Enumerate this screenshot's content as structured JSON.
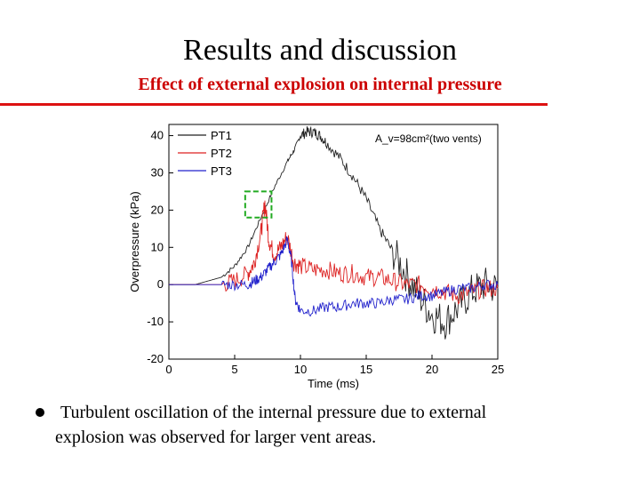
{
  "slide": {
    "title": "Results and discussion",
    "subtitle": "Effect of external explosion on internal pressure",
    "bullet_line1": "Turbulent oscillation of the internal pressure due to external",
    "bullet_line2": "explosion was observed  for larger vent areas."
  },
  "chart_data": {
    "type": "line",
    "title": "",
    "xlabel": "Time (ms)",
    "ylabel": "Overpressure (kPa)",
    "xlim": [
      0,
      25
    ],
    "ylim": [
      -20,
      43
    ],
    "xticks": [
      0,
      5,
      10,
      15,
      20,
      25
    ],
    "yticks": [
      -20,
      -10,
      0,
      10,
      20,
      30,
      40
    ],
    "annotation": "A_v=98cm²(two vents)",
    "legend_position": "top-left",
    "highlight_box": {
      "x_range": [
        5.8,
        7.8
      ],
      "y_range": [
        18,
        25
      ],
      "color": "#22aa22"
    },
    "series": [
      {
        "name": "PT1",
        "color": "#222222",
        "x": [
          0,
          2,
          3,
          4,
          5,
          6,
          7,
          8,
          9,
          9.5,
          10,
          10.5,
          11,
          11.5,
          12,
          13,
          14,
          15,
          16,
          17,
          18,
          19,
          20,
          21,
          22,
          23,
          24,
          25
        ],
        "y": [
          0,
          0,
          1,
          2,
          5,
          10,
          18,
          26,
          33,
          36,
          40,
          41,
          41,
          40,
          38,
          34,
          29,
          23,
          15,
          9,
          3,
          -3,
          -8,
          -10,
          -6,
          -2,
          0,
          -1
        ]
      },
      {
        "name": "PT2",
        "color": "#dd2222",
        "x": [
          0,
          2,
          4,
          5,
          6,
          6.5,
          7,
          7.3,
          7.6,
          8,
          8.5,
          9,
          9.5,
          10,
          11,
          12,
          13,
          14,
          15,
          16,
          17,
          18,
          19,
          20,
          21,
          22,
          23,
          24,
          25
        ],
        "y": [
          0,
          0,
          0,
          1,
          3,
          6,
          14,
          22,
          12,
          8,
          10,
          13,
          6,
          5,
          4,
          4,
          3,
          3,
          2,
          2,
          1,
          0,
          0,
          -1,
          -2,
          -3,
          -2,
          -1,
          -1
        ],
        "noise": 2.5
      },
      {
        "name": "PT3",
        "color": "#2222cc",
        "x": [
          0,
          3,
          4,
          5,
          6,
          6.5,
          7,
          7.5,
          8,
          8.5,
          9,
          9.3,
          9.6,
          10,
          11,
          12,
          13,
          14,
          15,
          16,
          17,
          18,
          19,
          20,
          21,
          22,
          23,
          24,
          25
        ],
        "y": [
          0,
          0,
          0,
          0,
          0,
          1,
          2,
          4,
          6,
          8,
          12,
          7,
          -4,
          -7,
          -7,
          -6,
          -6,
          -5,
          -5,
          -5,
          -4,
          -4,
          -3,
          -3,
          -2,
          -1,
          -1,
          0,
          0
        ],
        "noise": 1.5
      }
    ]
  }
}
